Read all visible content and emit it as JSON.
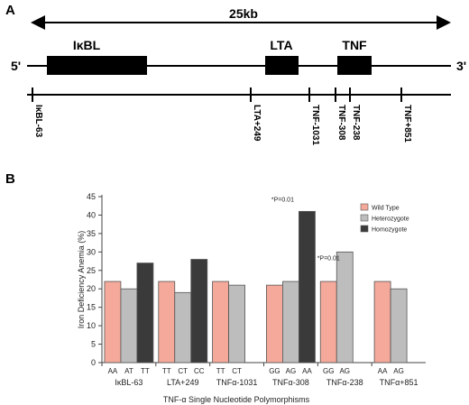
{
  "panel_a": {
    "label": "A",
    "span_label": "25kb",
    "end_left": "5'",
    "end_right": "3'",
    "genes": [
      "IκBL",
      "LTA",
      "TNF"
    ],
    "snps": [
      "IκBL-63",
      "LTA+249",
      "TNF-1031",
      "TNF-308",
      "TNF-238",
      "TNF+851"
    ]
  },
  "panel_b": {
    "label": "B"
  },
  "chart_data": {
    "type": "bar",
    "ylabel": "Iron Deficiency Anemia (%)",
    "xlabel": "TNF-α Single Nucleotide Polymorphisms",
    "ylim": [
      0,
      45
    ],
    "yticks": [
      0,
      5,
      10,
      15,
      20,
      25,
      30,
      35,
      40,
      45
    ],
    "grid": false,
    "legend_position": "top-right",
    "legend": [
      {
        "name": "Wild Type",
        "color": "#f4a99a"
      },
      {
        "name": "Heterozygote",
        "color": "#bdbdbd"
      },
      {
        "name": "Homozygote",
        "color": "#3a3a3a"
      }
    ],
    "groups": [
      {
        "name": "IκBL-63",
        "bars": [
          {
            "genotype": "AA",
            "series": "Wild Type",
            "value": 22
          },
          {
            "genotype": "AT",
            "series": "Heterozygote",
            "value": 20
          },
          {
            "genotype": "TT",
            "series": "Homozygote",
            "value": 27
          }
        ]
      },
      {
        "name": "LTA+249",
        "bars": [
          {
            "genotype": "TT",
            "series": "Wild Type",
            "value": 22
          },
          {
            "genotype": "CT",
            "series": "Heterozygote",
            "value": 19
          },
          {
            "genotype": "CC",
            "series": "Homozygote",
            "value": 28
          }
        ]
      },
      {
        "name": "TNFα-1031",
        "bars": [
          {
            "genotype": "TT",
            "series": "Wild Type",
            "value": 22
          },
          {
            "genotype": "CT",
            "series": "Heterozygote",
            "value": 21
          }
        ]
      },
      {
        "name": "TNFα-308",
        "bars": [
          {
            "genotype": "GG",
            "series": "Wild Type",
            "value": 21
          },
          {
            "genotype": "AG",
            "series": "Heterozygote",
            "value": 22
          },
          {
            "genotype": "AA",
            "series": "Homozygote",
            "value": 41
          }
        ]
      },
      {
        "name": "TNFα-238",
        "bars": [
          {
            "genotype": "GG",
            "series": "Wild Type",
            "value": 22
          },
          {
            "genotype": "AG",
            "series": "Heterozygote",
            "value": 30
          }
        ]
      },
      {
        "name": "TNFα+851",
        "bars": [
          {
            "genotype": "AA",
            "series": "Wild Type",
            "value": 22
          },
          {
            "genotype": "AG",
            "series": "Heterozygote",
            "value": 20
          }
        ]
      }
    ],
    "annotations": [
      {
        "text": "*P=0.01",
        "group": "TNFα-308"
      },
      {
        "text": "*P=0.01",
        "group": "TNFα-238"
      }
    ]
  }
}
